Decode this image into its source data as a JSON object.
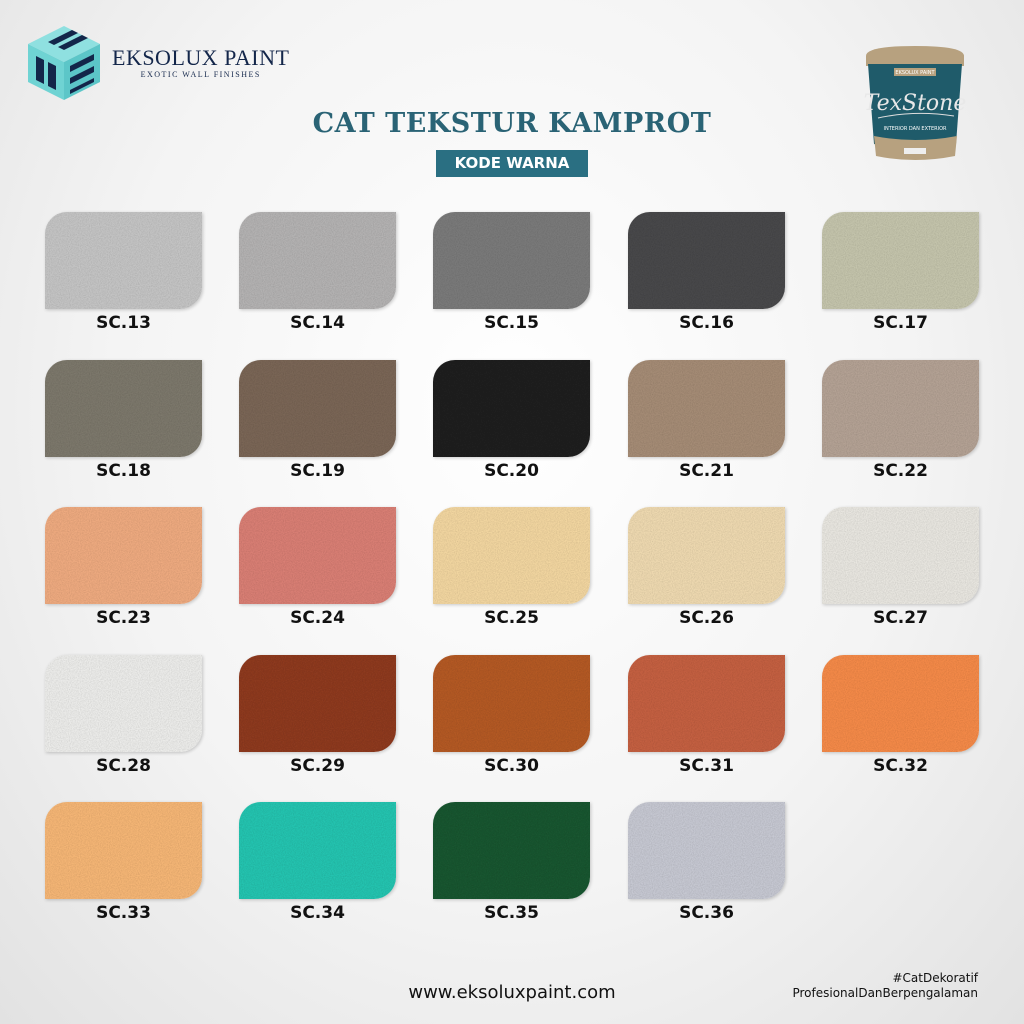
{
  "brand": {
    "name": "EKSOLUX PAINT",
    "tagline": "EXOTIC WALL FINISHES"
  },
  "title": "CAT TEKSTUR KAMPROT",
  "badge": "KODE WARNA",
  "product": {
    "name": "TexStone",
    "label_top": "EKSOLUX PAINT",
    "label_bottom": "INTERIOR DAN EXTERIOR"
  },
  "swatches": [
    {
      "code": "SC.13",
      "color": "#c4c4c4"
    },
    {
      "code": "SC.14",
      "color": "#b4b2b2"
    },
    {
      "code": "SC.15",
      "color": "#7a7a7a"
    },
    {
      "code": "SC.16",
      "color": "#4a4a4c"
    },
    {
      "code": "SC.17",
      "color": "#c4c4ac"
    },
    {
      "code": "SC.18",
      "color": "#7d786c"
    },
    {
      "code": "SC.19",
      "color": "#7a6656"
    },
    {
      "code": "SC.20",
      "color": "#222222"
    },
    {
      "code": "SC.21",
      "color": "#a58c76"
    },
    {
      "code": "SC.22",
      "color": "#b4a294"
    },
    {
      "code": "SC.23",
      "color": "#eeaa80"
    },
    {
      "code": "SC.24",
      "color": "#d97f74"
    },
    {
      "code": "SC.25",
      "color": "#f2d6a0"
    },
    {
      "code": "SC.26",
      "color": "#eed9b0"
    },
    {
      "code": "SC.27",
      "color": "#e8e6e0"
    },
    {
      "code": "SC.28",
      "color": "#ececea"
    },
    {
      "code": "SC.29",
      "color": "#8e3b24"
    },
    {
      "code": "SC.30",
      "color": "#b45a25"
    },
    {
      "code": "SC.31",
      "color": "#c46142"
    },
    {
      "code": "SC.32",
      "color": "#f48a48"
    },
    {
      "code": "SC.33",
      "color": "#f5b676"
    },
    {
      "code": "SC.34",
      "color": "#28c4b0"
    },
    {
      "code": "SC.35",
      "color": "#1e5632"
    },
    {
      "code": "SC.36",
      "color": "#c6c8d2"
    }
  ],
  "footer": {
    "url": "www.eksoluxpaint.com",
    "hashtag": "#CatDekoratif",
    "slogan": "ProfesionalDanBerpengalaman"
  },
  "colors": {
    "accent": "#2a6f82",
    "logo_teal": "#6fd3d3",
    "logo_navy": "#13264a"
  }
}
